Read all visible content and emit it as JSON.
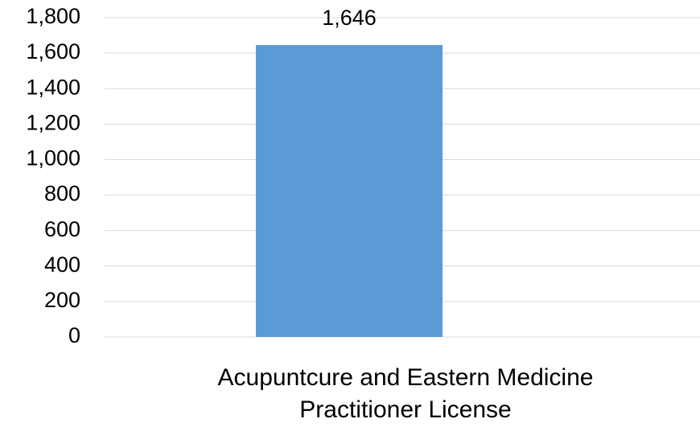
{
  "chart_data": {
    "type": "bar",
    "categories": [
      "Acupuntcure and Eastern Medicine Practitioner License"
    ],
    "values": [
      1646
    ],
    "value_labels": [
      "1,646"
    ],
    "color": "#5b9bd5",
    "ylim": [
      0,
      1800
    ],
    "yticks": [
      0,
      200,
      400,
      600,
      800,
      {
        "value": 1000,
        "label": "1,000"
      },
      {
        "value": 1200,
        "label": "1,200"
      },
      {
        "value": 1400,
        "label": "1,400"
      },
      {
        "value": 1600,
        "label": "1,600"
      },
      {
        "value": 1800,
        "label": "1,800"
      }
    ],
    "grid": true
  }
}
